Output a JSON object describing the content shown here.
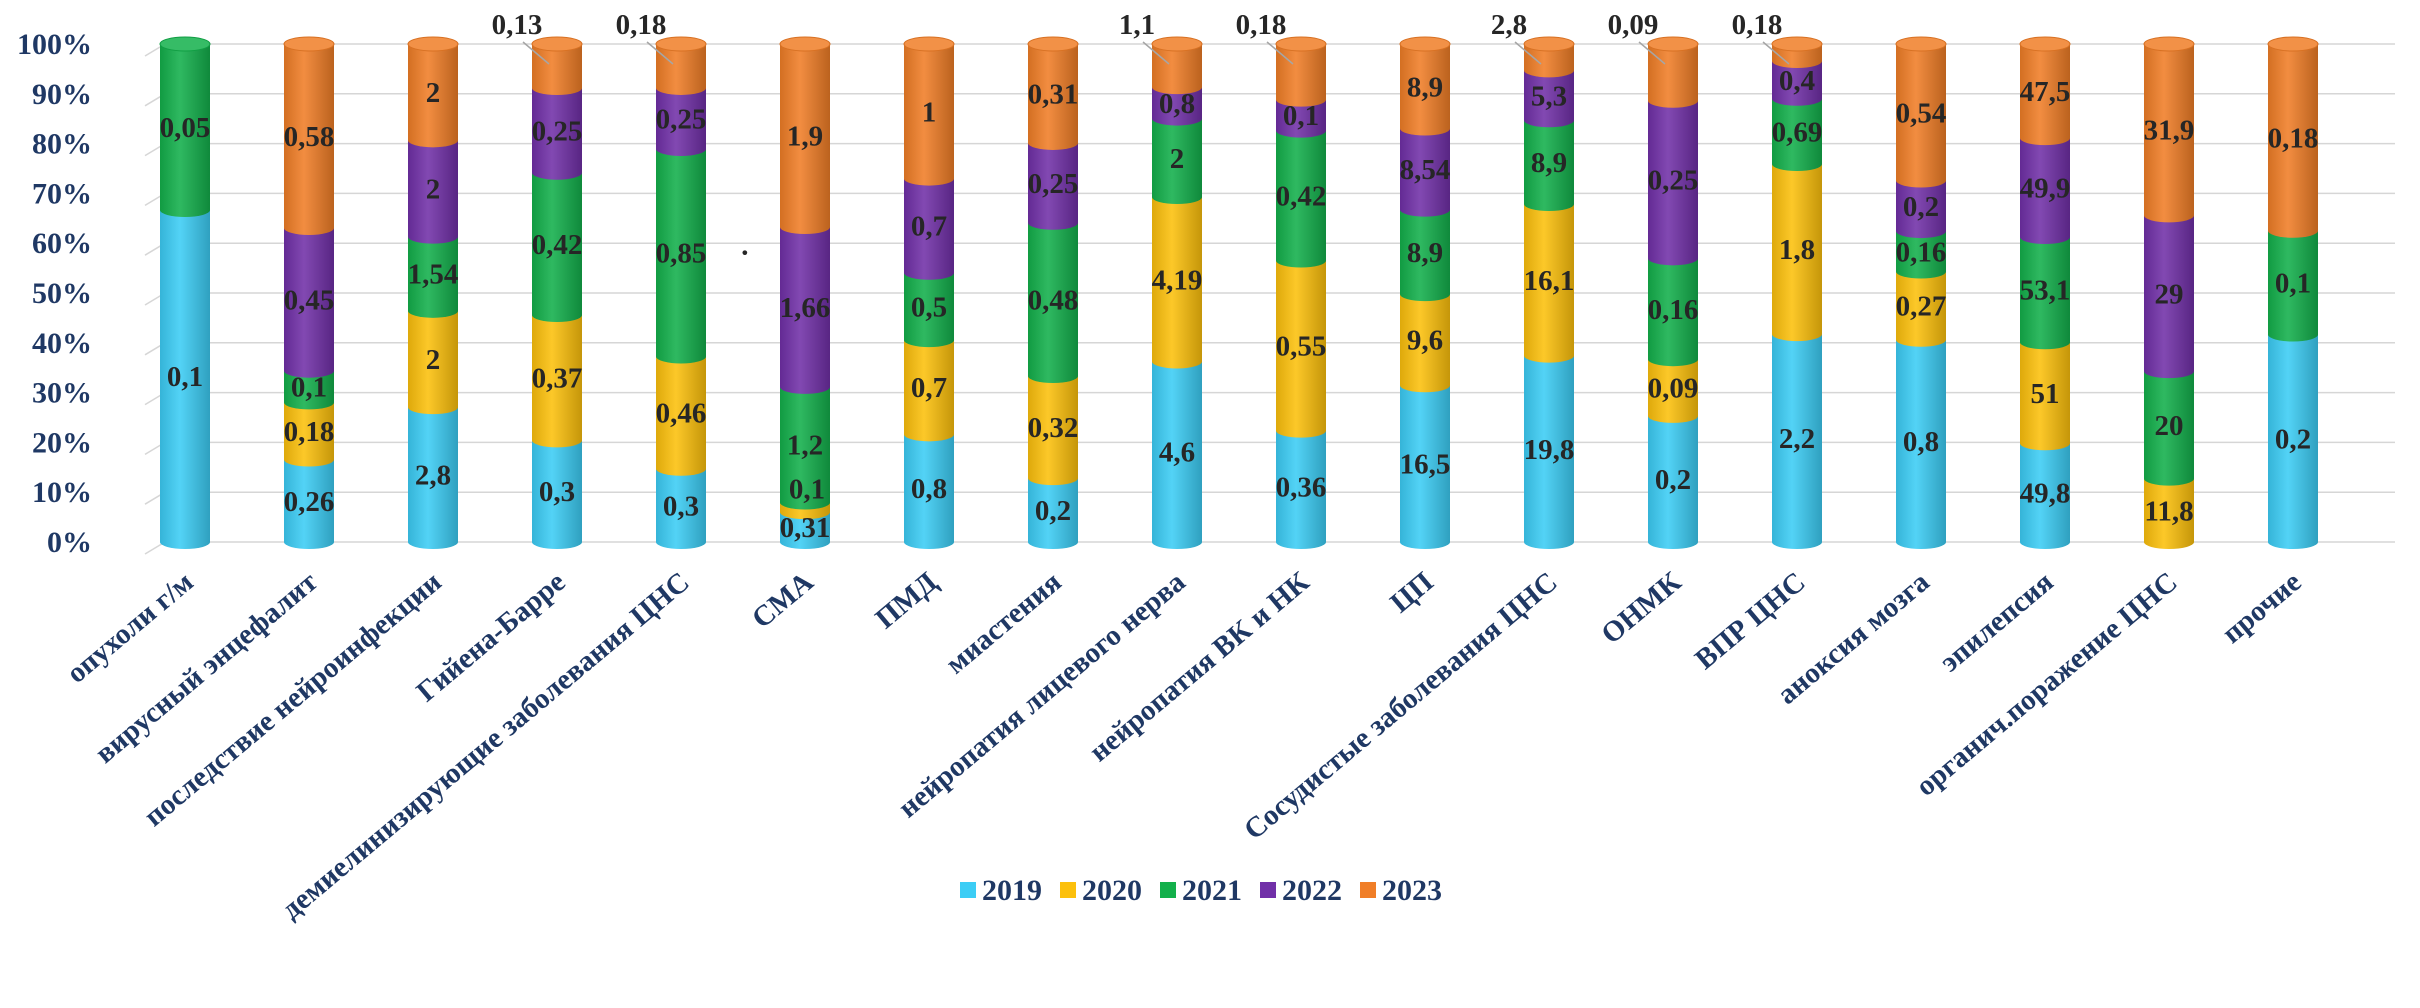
{
  "chart_data": {
    "type": "bar",
    "stacked": "percent",
    "style": "3d-cylinder",
    "title": "",
    "xlabel": "",
    "ylabel": "",
    "ylim": [
      0,
      100
    ],
    "y_ticks": [
      "0%",
      "10%",
      "20%",
      "30%",
      "40%",
      "50%",
      "60%",
      "70%",
      "80%",
      "90%",
      "100%"
    ],
    "grid": true,
    "legend_position": "bottom",
    "colors": {
      "2019": "#3ccdf5",
      "2020": "#fcc00c",
      "2021": "#13b04b",
      "2022": "#7130a8",
      "2023": "#f07e27"
    },
    "categories": [
      "опухоли г/м",
      "вирусный энцефалит",
      "последствие нейроинфекции",
      "Гийена-Барре",
      "демиелинизирующие заболевания ЦНС",
      "СМА",
      "ПМД",
      "миастения",
      "нейропатия лицевого нерва",
      "нейропатия ВК и НК",
      "ЦП",
      "Сосудистые заболевания ЦНС",
      "ОНМК",
      "ВПР ЦНС",
      "аноксия мозга",
      "эпилепсия",
      "органич.поражение ЦНС",
      "прочие"
    ],
    "series": [
      {
        "name": "2019",
        "values": [
          0.1,
          0.26,
          2.8,
          0.3,
          0.3,
          0.31,
          0.8,
          0.2,
          4.6,
          0.36,
          16.5,
          19.8,
          0.2,
          2.2,
          0.8,
          49.8,
          0,
          0.2
        ],
        "labels": [
          "0,1",
          "0,26",
          "2,8",
          "0,3",
          "0,3",
          "0,31",
          "0,8",
          "0,2",
          "4,6",
          "0,36",
          "16,5",
          "19,8",
          "0,2",
          "2,2",
          "0,8",
          "49,8",
          "",
          "0,2"
        ]
      },
      {
        "name": "2020",
        "values": [
          0,
          0.18,
          2,
          0.37,
          0.46,
          0.1,
          0.7,
          0.32,
          4.19,
          0.55,
          9.6,
          16.1,
          0.09,
          1.8,
          0.27,
          51,
          11.8,
          0
        ],
        "labels": [
          "",
          "0,18",
          "2",
          "0,37",
          "0,46",
          "0,1",
          "0,7",
          "0,32",
          "4,19",
          "0,55",
          "9,6",
          "16,1",
          "0,09",
          "1,8",
          "0,27",
          "51",
          "11,8",
          ""
        ]
      },
      {
        "name": "2021",
        "values": [
          0.05,
          0.1,
          1.54,
          0.42,
          0.85,
          1.2,
          0.5,
          0.48,
          2,
          0.42,
          8.9,
          8.9,
          0.16,
          0.69,
          0.16,
          53.1,
          20,
          0.1
        ],
        "labels": [
          "0,05",
          "0,1",
          "1,54",
          "0,42",
          "0,85",
          "1,2",
          "0,5",
          "0,48",
          "2",
          "0,42",
          "8,9",
          "8,9",
          "0,16",
          "0,69",
          "0,16",
          "53,1",
          "20",
          "0,1"
        ]
      },
      {
        "name": "2022",
        "values": [
          0,
          0.45,
          2,
          0.25,
          0.25,
          1.66,
          0.7,
          0.25,
          0.8,
          0.1,
          8.54,
          5.3,
          0.25,
          0.4,
          0.2,
          49.9,
          29,
          0
        ],
        "labels": [
          "",
          "0,45",
          "2",
          "0,25",
          "0,25",
          "1,66",
          "0,7",
          "0,25",
          "0,8",
          "0,1",
          "8,54",
          "5,3",
          "0,25",
          "0,4",
          "0,2",
          "49,9",
          "29",
          ""
        ]
      },
      {
        "name": "2023",
        "values": [
          0,
          0.58,
          2,
          0.13,
          0.18,
          1.9,
          1,
          0.31,
          1.1,
          0.18,
          8.9,
          2.8,
          0.09,
          0.18,
          0.54,
          47.5,
          31.9,
          0.18
        ],
        "labels": [
          "",
          "0,58",
          "2",
          "0,13",
          "0,18",
          "1,9",
          "1",
          "0,31",
          "1,1",
          "0,18",
          "8,9",
          "2,8",
          "0,09",
          "0,18",
          "0,54",
          "47,5",
          "31,9",
          "0,18"
        ]
      }
    ],
    "annotations": [
      "·"
    ]
  }
}
